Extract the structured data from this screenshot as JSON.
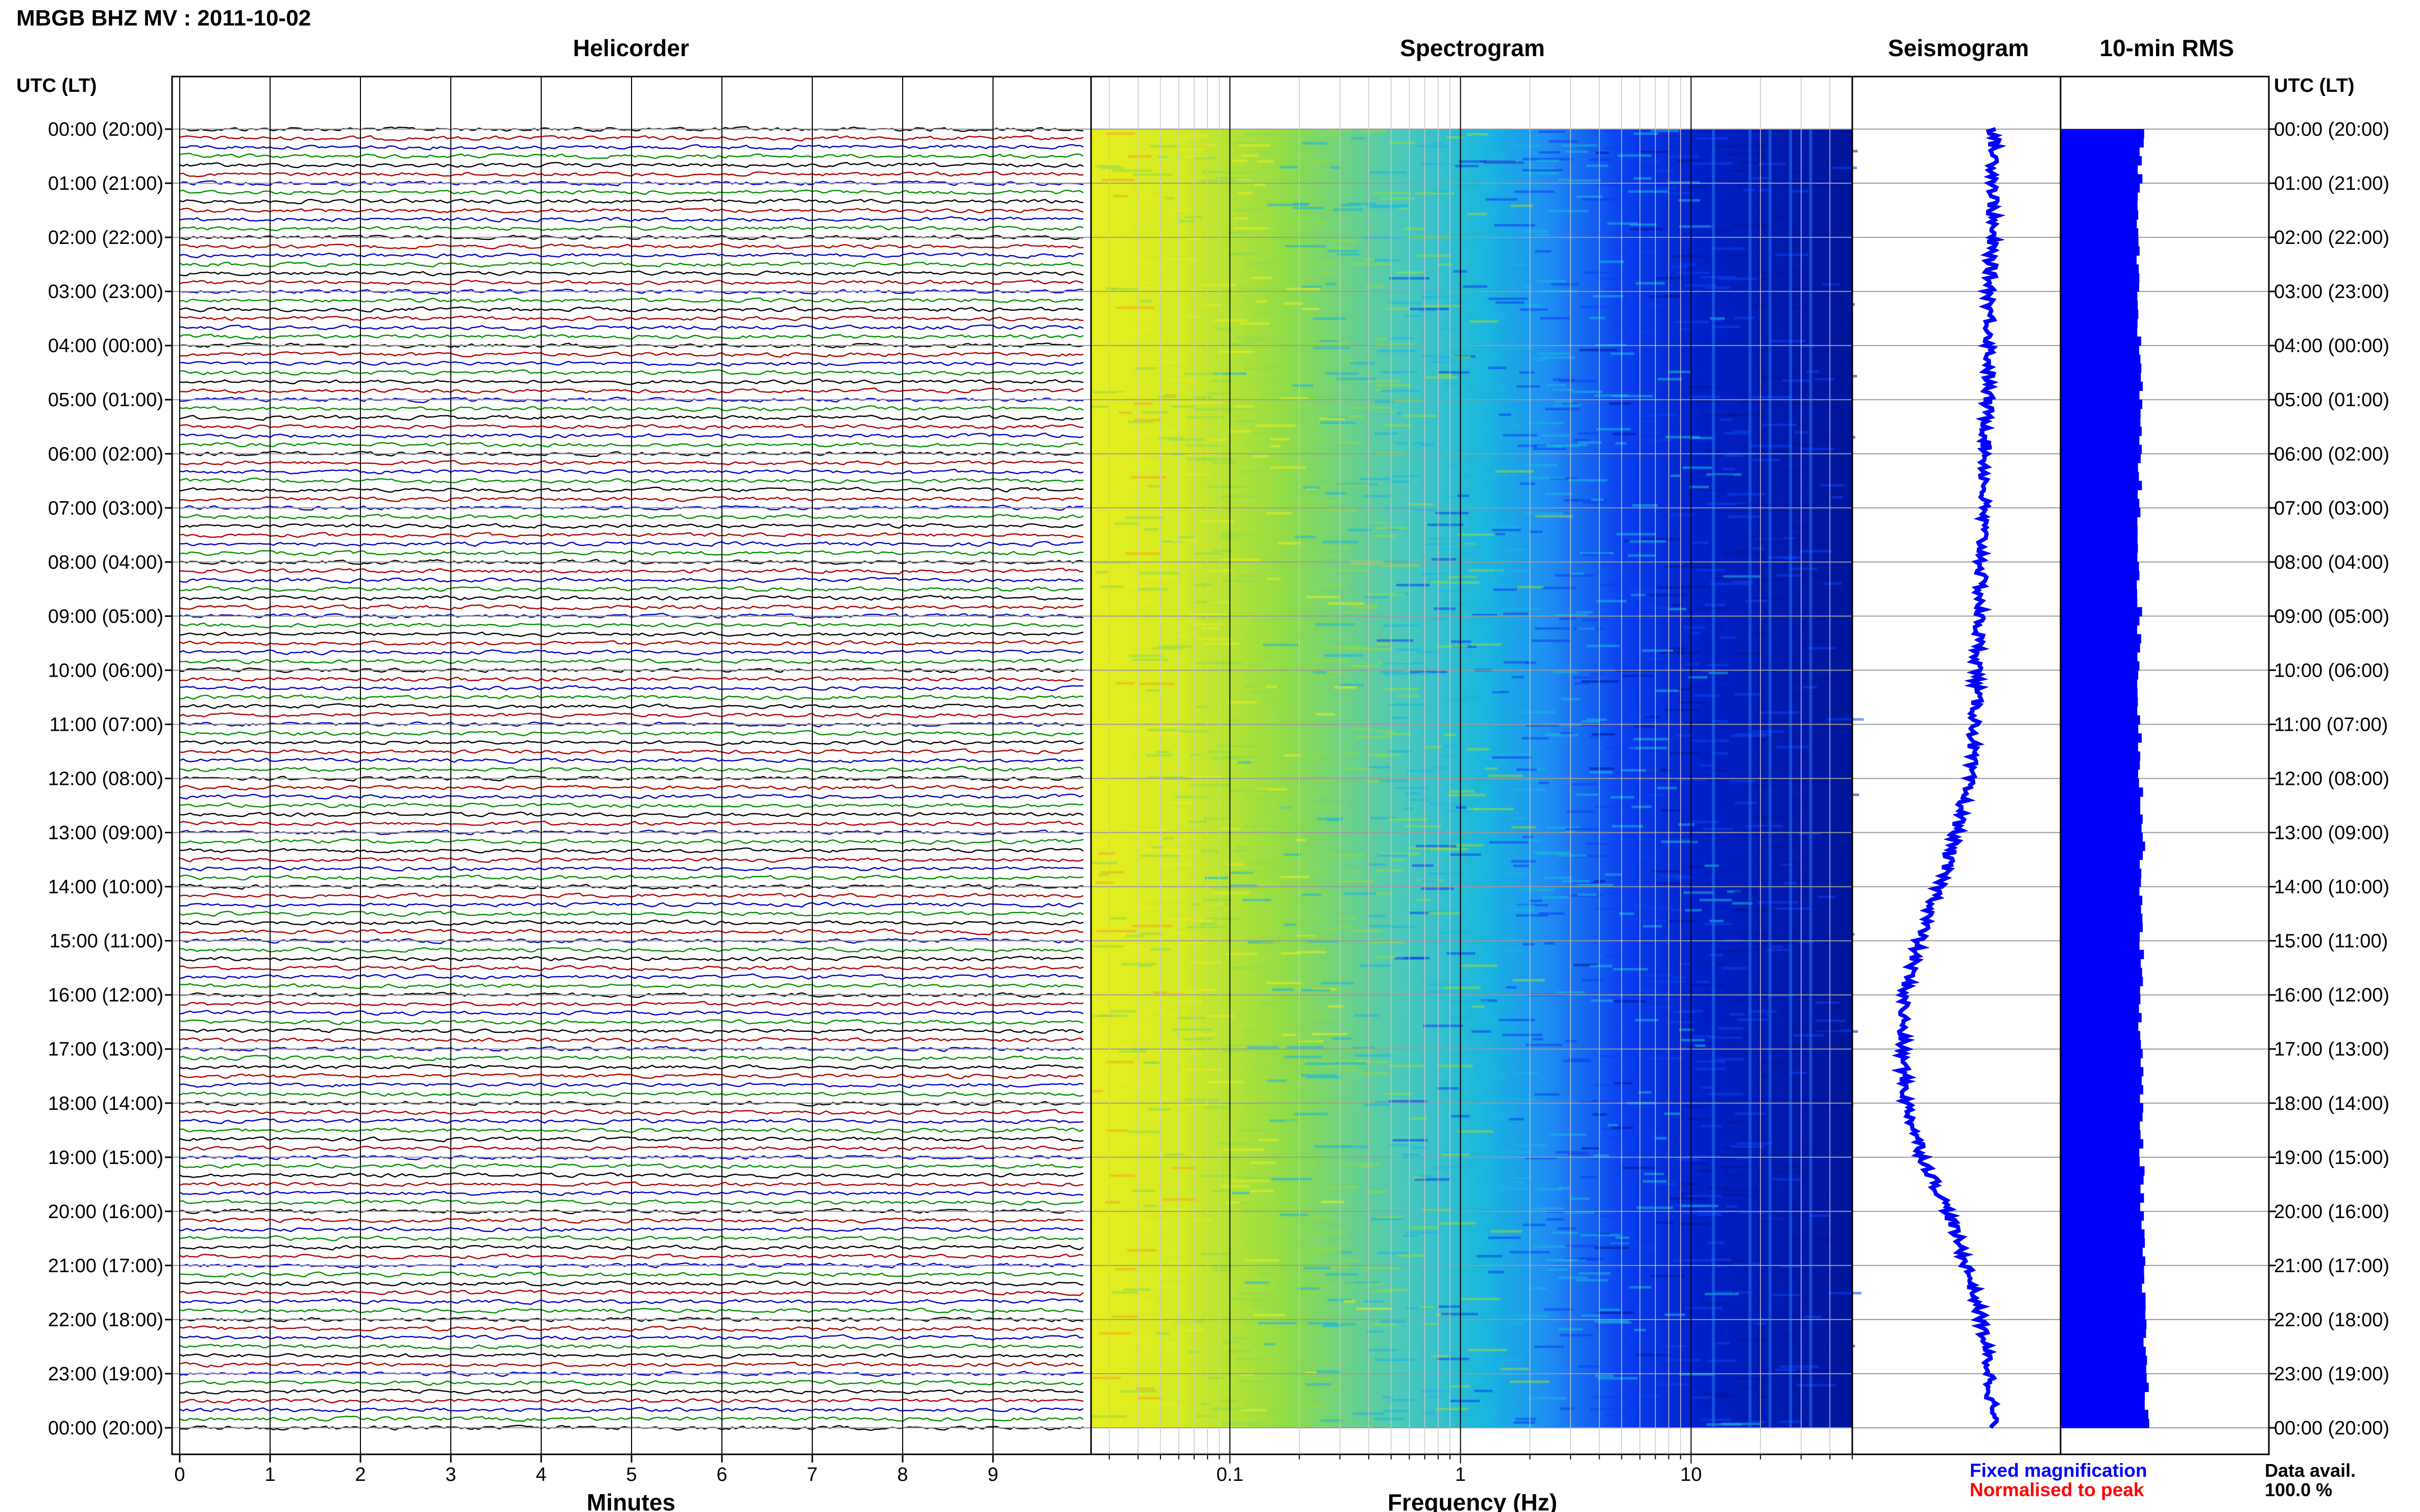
{
  "header": {
    "title": "MBGB BHZ MV : 2011-10-02",
    "panels": [
      "Helicorder",
      "Spectrogram",
      "Seismogram",
      "10-min RMS"
    ],
    "time_axis_title": "UTC (LT)"
  },
  "time_labels": [
    "00:00 (20:00)",
    "01:00 (21:00)",
    "02:00 (22:00)",
    "03:00 (23:00)",
    "04:00 (00:00)",
    "05:00 (01:00)",
    "06:00 (02:00)",
    "07:00 (03:00)",
    "08:00 (04:00)",
    "09:00 (05:00)",
    "10:00 (06:00)",
    "11:00 (07:00)",
    "12:00 (08:00)",
    "13:00 (09:00)",
    "14:00 (10:00)",
    "15:00 (11:00)",
    "16:00 (12:00)",
    "17:00 (13:00)",
    "18:00 (14:00)",
    "19:00 (15:00)",
    "20:00 (16:00)",
    "21:00 (17:00)",
    "22:00 (18:00)",
    "23:00 (19:00)",
    "00:00 (20:00)"
  ],
  "footer": {
    "fixed_label": "Fixed magnification",
    "normalised_label": "Normalised to peak",
    "data_avail_label": "Data avail.",
    "data_avail_value": "100.0 %"
  },
  "colors": {
    "trace_cycle": [
      "#000000",
      "#b00000",
      "#0000c8",
      "#009000"
    ],
    "fixed": "#0000ff",
    "normalised": "#ff0000",
    "rms_bar": "#0000ff",
    "spectrogram_low": "#e8ef20",
    "spectrogram_mid": "#19b5e0",
    "spectrogram_high": "#00169a"
  },
  "chart_data": [
    {
      "type": "line",
      "title": "Helicorder",
      "xlabel": "Minutes",
      "x_ticks": [
        0,
        1,
        2,
        3,
        4,
        5,
        6,
        7,
        8,
        9
      ],
      "xlim": [
        0,
        10
      ],
      "trace_rows_per_hour": 6,
      "trace_minutes": 10
    },
    {
      "type": "heatmap",
      "title": "Spectrogram",
      "xlabel": "Frequency (Hz)",
      "x_scale": "log",
      "xlim": [
        0.025,
        50
      ],
      "x_tick_labels": [
        "0.1",
        "1",
        "10"
      ],
      "x_tick_values": [
        0.1,
        1,
        10
      ]
    },
    {
      "type": "line",
      "title": "Seismogram",
      "hours": [
        0,
        1,
        2,
        3,
        4,
        5,
        6,
        7,
        8,
        9,
        10,
        11,
        12,
        13,
        14,
        15,
        16,
        17,
        18,
        19,
        20,
        21,
        22,
        23,
        24
      ],
      "values": [
        0.68,
        0.68,
        0.67,
        0.66,
        0.66,
        0.65,
        0.64,
        0.63,
        0.62,
        0.61,
        0.6,
        0.59,
        0.56,
        0.5,
        0.42,
        0.32,
        0.25,
        0.24,
        0.26,
        0.34,
        0.46,
        0.55,
        0.62,
        0.66,
        0.68
      ]
    },
    {
      "type": "bar",
      "title": "10-min RMS",
      "hours": [
        0,
        1,
        2,
        3,
        4,
        5,
        6,
        7,
        8,
        9,
        10,
        11,
        12,
        13,
        14,
        15,
        16,
        17,
        18,
        19,
        20,
        21,
        22,
        23,
        24
      ],
      "values": [
        0.78,
        0.76,
        0.75,
        0.76,
        0.75,
        0.77,
        0.76,
        0.76,
        0.75,
        0.76,
        0.75,
        0.76,
        0.77,
        0.79,
        0.78,
        0.78,
        0.77,
        0.77,
        0.78,
        0.78,
        0.79,
        0.79,
        0.8,
        0.82,
        0.84
      ]
    }
  ]
}
